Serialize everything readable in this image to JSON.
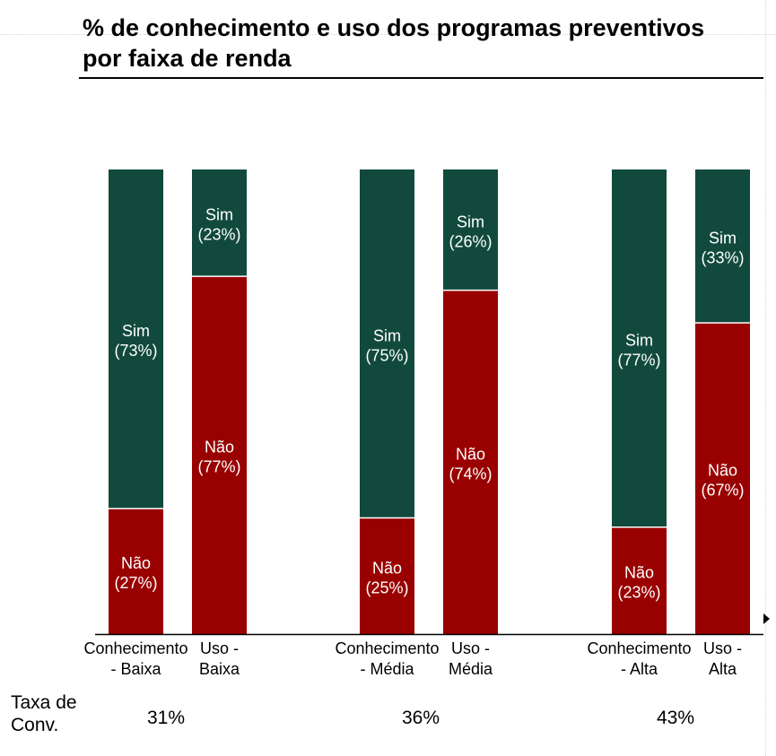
{
  "chart_data": {
    "type": "bar",
    "stacked": true,
    "normalized_percent": true,
    "title": "% de conhecimento e uso dos programas preventivos por faixa de renda",
    "categories": [
      "Conhecimento - Baixa",
      "Uso - Baixa",
      "Conhecimento - Média",
      "Uso - Média",
      "Conhecimento - Alta",
      "Uso - Alta"
    ],
    "category_lines": [
      [
        "Conhecimento",
        "- Baixa"
      ],
      [
        "Uso -",
        "Baixa"
      ],
      [
        "Conhecimento",
        "- Média"
      ],
      [
        "Uso -",
        "Média"
      ],
      [
        "Conhecimento",
        "- Alta"
      ],
      [
        "Uso -",
        "Alta"
      ]
    ],
    "series": [
      {
        "name": "Não",
        "color": "#990000",
        "values": [
          27,
          77,
          25,
          74,
          23,
          67
        ],
        "labels": [
          "(27%)",
          "(77%)",
          "(25%)",
          "(74%)",
          "(23%)",
          "(67%)"
        ]
      },
      {
        "name": "Sim",
        "color": "#114a3c",
        "values": [
          73,
          23,
          75,
          26,
          77,
          33
        ],
        "labels": [
          "(73%)",
          "(23%)",
          "(75%)",
          "(26%)",
          "(77%)",
          "(33%)"
        ]
      }
    ],
    "ylim": [
      0,
      100
    ],
    "grid": false,
    "legend": "none"
  },
  "conversion": {
    "label": "Taxa de Conv.",
    "values": [
      "31%",
      "36%",
      "43%"
    ]
  }
}
